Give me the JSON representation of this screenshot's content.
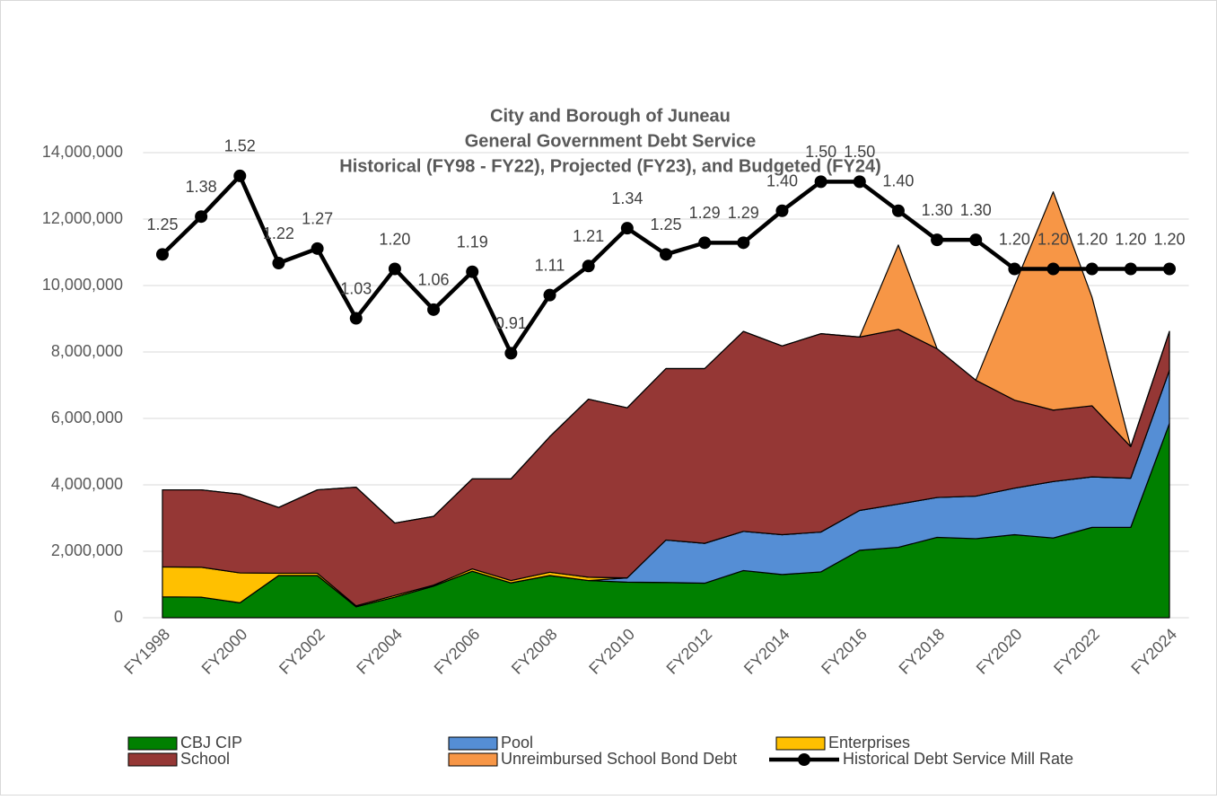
{
  "chart_data": {
    "type": "area",
    "title": [
      "City and Borough of Juneau",
      "General Government Debt Service",
      "Historical (FY98 - FY22), Projected (FY23), and Budgeted (FY24)"
    ],
    "categories": [
      "FY1998",
      null,
      "FY2000",
      null,
      "FY2002",
      null,
      "FY2004",
      null,
      "FY2006",
      null,
      "FY2008",
      null,
      "FY2010",
      null,
      "FY2012",
      null,
      "FY2014",
      null,
      "FY2016",
      null,
      "FY2018",
      null,
      "FY2020",
      null,
      "FY2022",
      null,
      "FY2024"
    ],
    "ylim": [
      0,
      14000000
    ],
    "yticks": [
      0,
      {
        "value": 2000000,
        "label": "2,000,000"
      },
      {
        "value": 4000000,
        "label": "4,000,000"
      },
      {
        "value": 6000000,
        "label": "6,000,000"
      },
      {
        "value": 8000000,
        "label": "8,000,000"
      },
      {
        "value": 10000000,
        "label": "10,000,000"
      },
      {
        "value": 12000000,
        "label": "12,000,000"
      },
      {
        "value": 14000000,
        "label": "14,000,000"
      }
    ],
    "y2lim": [
      0,
      1.6
    ],
    "grid": true,
    "legend": "bottom",
    "series": [
      {
        "name": "CBJ CIP",
        "type": "area",
        "color": "#008000",
        "values": [
          630000,
          620000,
          450000,
          1270000,
          1270000,
          330000,
          620000,
          950000,
          1400000,
          1050000,
          1270000,
          1120000,
          1070000,
          1060000,
          1040000,
          1420000,
          1300000,
          1380000,
          2030000,
          2120000,
          2420000,
          2380000,
          2500000,
          2400000,
          2720000,
          2720000,
          5850000
        ]
      },
      {
        "name": "Pool",
        "type": "area",
        "color": "#558ed5",
        "values": [
          0,
          0,
          0,
          0,
          0,
          0,
          0,
          0,
          0,
          0,
          0,
          0,
          130000,
          1280000,
          1200000,
          1180000,
          1200000,
          1200000,
          1200000,
          1300000,
          1200000,
          1280000,
          1400000,
          1700000,
          1520000,
          1480000,
          1600000
        ]
      },
      {
        "name": "Enterprises",
        "type": "area",
        "color": "#ffc000",
        "values": [
          900000,
          900000,
          900000,
          70000,
          70000,
          30000,
          50000,
          30000,
          70000,
          70000,
          100000,
          100000,
          0,
          0,
          0,
          0,
          0,
          0,
          0,
          0,
          0,
          0,
          0,
          0,
          0,
          0,
          0
        ]
      },
      {
        "name": "School",
        "type": "area",
        "color": "#953735",
        "values": [
          2320000,
          2330000,
          2370000,
          1980000,
          2510000,
          3570000,
          2180000,
          2070000,
          2710000,
          3060000,
          4080000,
          5360000,
          5120000,
          5160000,
          5260000,
          6020000,
          5680000,
          5970000,
          5220000,
          5260000,
          4480000,
          3490000,
          2650000,
          2150000,
          2140000,
          950000,
          1170000
        ]
      },
      {
        "name": "Unreimbursed School Bond Debt",
        "type": "area",
        "color": "#f79646",
        "values": [
          0,
          0,
          0,
          0,
          0,
          0,
          0,
          0,
          0,
          0,
          0,
          0,
          0,
          0,
          0,
          0,
          0,
          0,
          0,
          2540000,
          0,
          0,
          3450000,
          6570000,
          3270000,
          0,
          0
        ]
      },
      {
        "name": "Historical Debt Service Mill Rate",
        "type": "line",
        "axis": "y2",
        "color": "#000000",
        "values": [
          1.25,
          1.38,
          1.52,
          1.22,
          1.27,
          1.03,
          1.2,
          1.06,
          1.19,
          0.91,
          1.11,
          1.21,
          1.34,
          1.25,
          1.29,
          1.29,
          1.4,
          1.5,
          1.5,
          1.4,
          1.3,
          1.3,
          1.2,
          1.2,
          1.2,
          1.2,
          1.2
        ],
        "value_labels": [
          "1.25",
          "1.38",
          "1.52",
          "1.22",
          "1.27",
          "1.03",
          "1.20",
          "1.06",
          "1.19",
          "0.91",
          "1.11",
          "1.21",
          "1.34",
          "1.25",
          "1.29",
          "1.29",
          "1.40",
          "1.50",
          "1.50",
          "1.40",
          "1.30",
          "1.30",
          "1.20",
          "1.20",
          "1.20",
          "1.20",
          "1.20"
        ]
      }
    ]
  }
}
